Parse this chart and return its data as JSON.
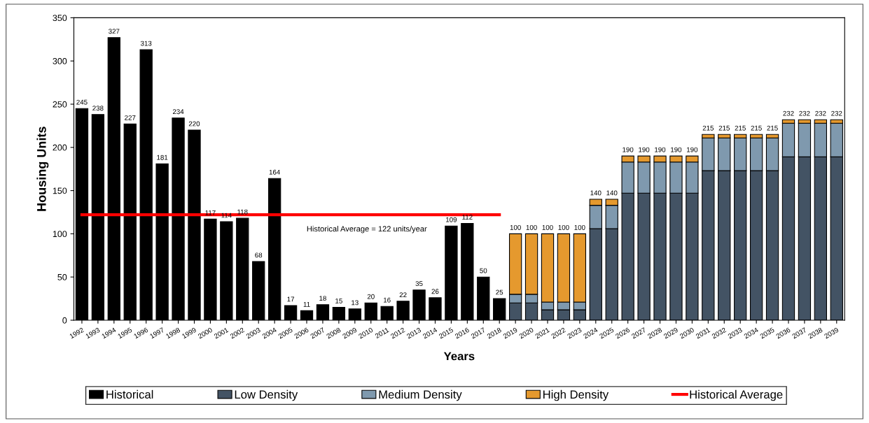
{
  "chart_data": {
    "type": "bar",
    "stacked": true,
    "xlabel": "Years",
    "ylabel": "Housing Units",
    "categories": [
      "1992",
      "1993",
      "1994",
      "1995",
      "1996",
      "1997",
      "1998",
      "1999",
      "2000",
      "2001",
      "2002",
      "2003",
      "2004",
      "2005",
      "2006",
      "2007",
      "2008",
      "2009",
      "2010",
      "2011",
      "2012",
      "2013",
      "2014",
      "2015",
      "2016",
      "2017",
      "2018",
      "2019",
      "2020",
      "2021",
      "2022",
      "2023",
      "2024",
      "2025",
      "2026",
      "2027",
      "2028",
      "2029",
      "2030",
      "2031",
      "2032",
      "2033",
      "2034",
      "2035",
      "2036",
      "2037",
      "2038",
      "2039"
    ],
    "series": [
      {
        "name": "Historical",
        "color": "#000000",
        "values": [
          245,
          238,
          327,
          227,
          313,
          181,
          234,
          220,
          117,
          114,
          118,
          68,
          164,
          17,
          11,
          18,
          15,
          13,
          20,
          16,
          22,
          35,
          26,
          109,
          112,
          50,
          25,
          null,
          null,
          null,
          null,
          null,
          null,
          null,
          null,
          null,
          null,
          null,
          null,
          null,
          null,
          null,
          null,
          null,
          null,
          null,
          null,
          null
        ],
        "value_labels": [
          "245",
          "238",
          "327",
          "227",
          "313",
          "181",
          "234",
          "220",
          "117",
          "114",
          "118",
          "68",
          "164",
          "17",
          "11",
          "18",
          "15",
          "13",
          "20",
          "16",
          "22",
          "35",
          "26",
          "109",
          "112",
          "50",
          "25",
          null,
          null,
          null,
          null,
          null,
          null,
          null,
          null,
          null,
          null,
          null,
          null,
          null,
          null,
          null,
          null,
          null,
          null,
          null,
          null,
          null
        ]
      },
      {
        "name": "Low Density",
        "color": "#435364",
        "values": [
          null,
          null,
          null,
          null,
          null,
          null,
          null,
          null,
          null,
          null,
          null,
          null,
          null,
          null,
          null,
          null,
          null,
          null,
          null,
          null,
          null,
          null,
          null,
          null,
          null,
          null,
          null,
          20,
          20,
          12,
          12,
          12,
          106,
          106,
          147,
          147,
          147,
          147,
          147,
          173,
          173,
          173,
          173,
          173,
          189,
          189,
          189,
          189
        ]
      },
      {
        "name": "Medium Density",
        "color": "#7f99ae",
        "values": [
          null,
          null,
          null,
          null,
          null,
          null,
          null,
          null,
          null,
          null,
          null,
          null,
          null,
          null,
          null,
          null,
          null,
          null,
          null,
          null,
          null,
          null,
          null,
          null,
          null,
          null,
          null,
          10,
          10,
          9,
          9,
          9,
          27,
          27,
          36,
          36,
          36,
          36,
          36,
          38,
          38,
          38,
          38,
          38,
          39,
          39,
          39,
          39
        ]
      },
      {
        "name": "High Density",
        "color": "#e5992e",
        "values": [
          null,
          null,
          null,
          null,
          null,
          null,
          null,
          null,
          null,
          null,
          null,
          null,
          null,
          null,
          null,
          null,
          null,
          null,
          null,
          null,
          null,
          null,
          null,
          null,
          null,
          null,
          null,
          70,
          70,
          79,
          79,
          79,
          7,
          7,
          7,
          7,
          7,
          7,
          7,
          4,
          4,
          4,
          4,
          4,
          4,
          4,
          4,
          4
        ]
      },
      {
        "name": "Historical Average",
        "type": "line",
        "color": "#ff0000",
        "values": [
          122,
          122,
          122,
          122,
          122,
          122,
          122,
          122,
          122,
          122,
          122,
          122,
          122,
          122,
          122,
          122,
          122,
          122,
          122,
          122,
          122,
          122,
          122,
          122,
          122,
          122,
          122,
          null,
          null,
          null,
          null,
          null,
          null,
          null,
          null,
          null,
          null,
          null,
          null,
          null,
          null,
          null,
          null,
          null,
          null,
          null,
          null,
          null
        ]
      }
    ],
    "totals": [
      null,
      null,
      null,
      null,
      null,
      null,
      null,
      null,
      null,
      null,
      null,
      null,
      null,
      null,
      null,
      null,
      null,
      null,
      null,
      null,
      null,
      null,
      null,
      null,
      null,
      null,
      null,
      "100",
      "100",
      "100",
      "100",
      "100",
      "140",
      "140",
      "190",
      "190",
      "190",
      "190",
      "190",
      "215",
      "215",
      "215",
      "215",
      "215",
      "232",
      "232",
      "232",
      "232"
    ],
    "annotations": [
      "Historical Average = 122 units/year"
    ],
    "ylim": [
      0,
      350
    ],
    "yticks": [
      0,
      50,
      100,
      150,
      200,
      250,
      300,
      350
    ],
    "grid": false,
    "legend": "bottom"
  }
}
